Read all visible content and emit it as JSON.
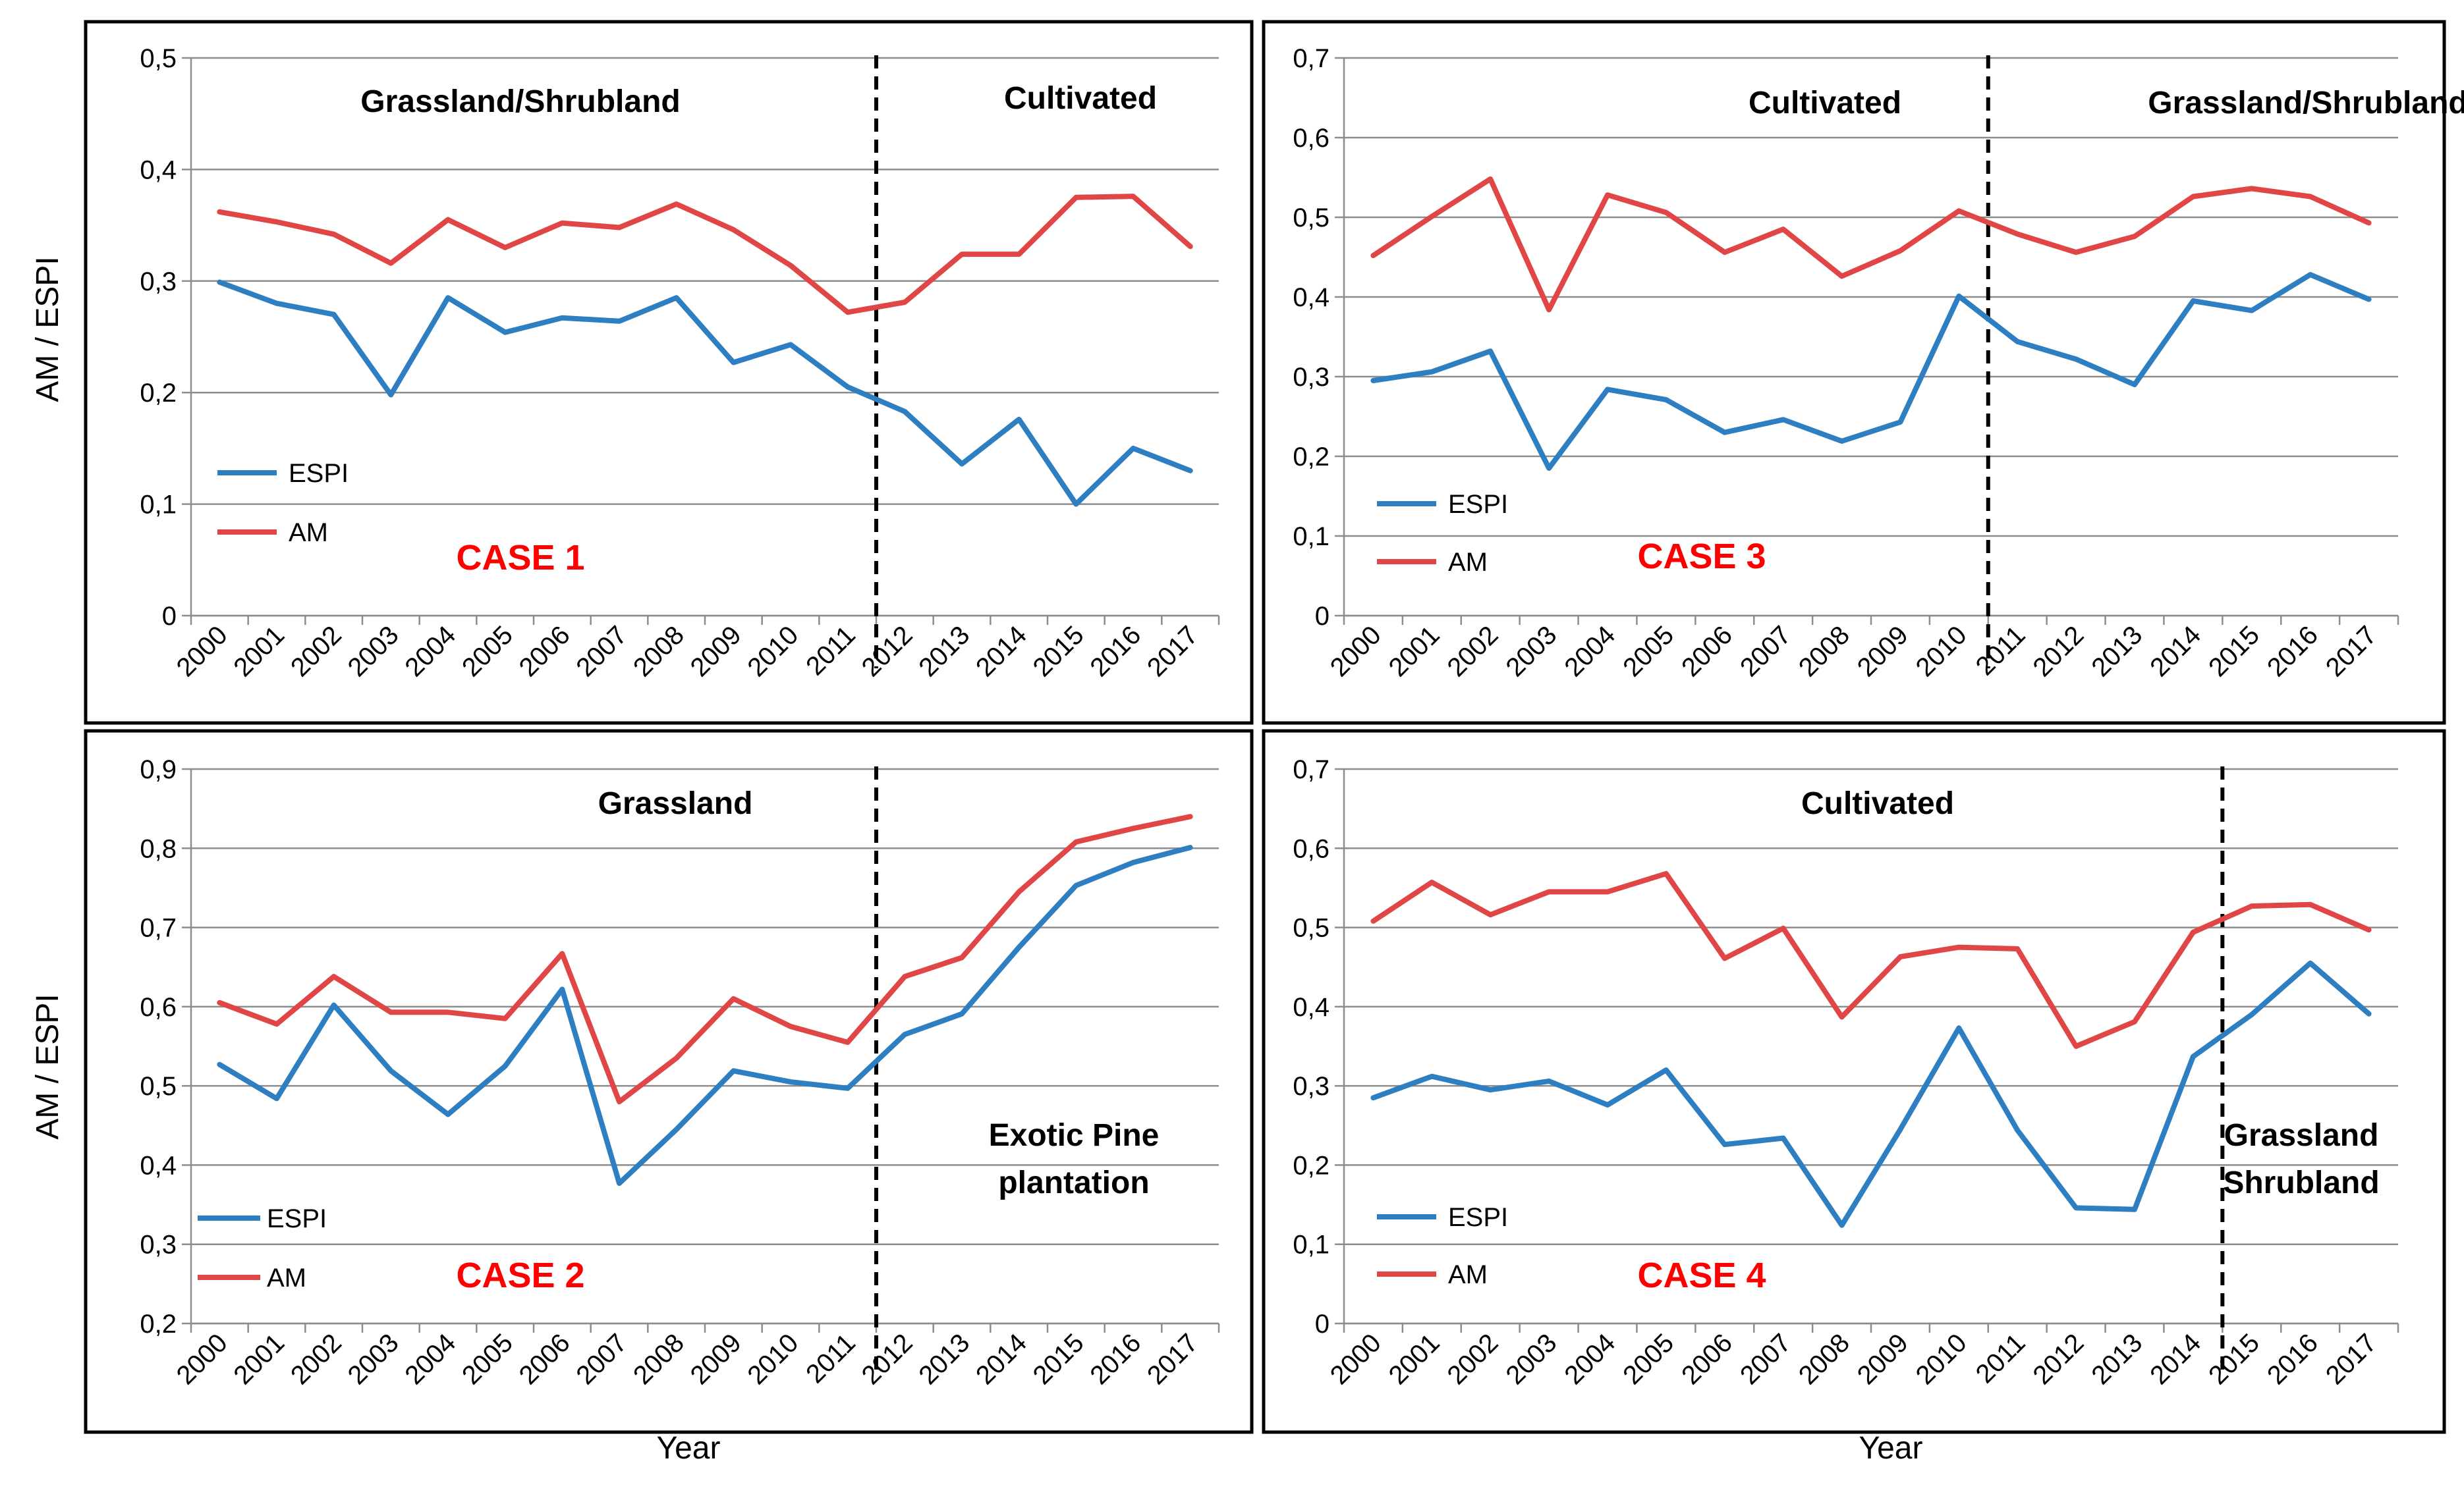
{
  "chart_data": [
    {
      "type": "line",
      "case_label": "CASE 1",
      "ylabel": "AM / ESPI",
      "xlabel": "",
      "ylim": [
        0,
        0.5
      ],
      "yticks": [
        "0",
        "0,1",
        "0,2",
        "0,3",
        "0,4",
        "0,5"
      ],
      "categories": [
        "2000",
        "2001",
        "2002",
        "2003",
        "2004",
        "2005",
        "2006",
        "2007",
        "2008",
        "2009",
        "2010",
        "2011",
        "2012",
        "2013",
        "2014",
        "2015",
        "2016",
        "2017"
      ],
      "series": [
        {
          "name": "ESPI",
          "values": [
            0.299,
            0.28,
            0.27,
            0.198,
            0.285,
            0.254,
            0.267,
            0.264,
            0.285,
            0.227,
            0.243,
            0.205,
            0.183,
            0.136,
            0.176,
            0.1,
            0.15,
            0.13
          ]
        },
        {
          "name": "AM",
          "values": [
            0.362,
            0.353,
            0.342,
            0.316,
            0.355,
            0.33,
            0.352,
            0.348,
            0.369,
            0.346,
            0.314,
            0.272,
            0.281,
            0.324,
            0.324,
            0.375,
            0.376,
            0.331
          ]
        }
      ],
      "divider_after": "2011",
      "annotations": [
        {
          "text": "Grassland/Shrubland",
          "lines": [
            "Grassland/Shrubland"
          ]
        },
        {
          "text": "Cultivated",
          "lines": [
            "Cultivated"
          ]
        }
      ],
      "legend_position": "bottom-left"
    },
    {
      "type": "line",
      "case_label": "CASE 3",
      "ylabel": "",
      "xlabel": "",
      "ylim": [
        0,
        0.7
      ],
      "yticks": [
        "0",
        "0,1",
        "0,2",
        "0,3",
        "0,4",
        "0,5",
        "0,6",
        "0,7"
      ],
      "categories": [
        "2000",
        "2001",
        "2002",
        "2003",
        "2004",
        "2005",
        "2006",
        "2007",
        "2008",
        "2009",
        "2010",
        "2011",
        "2012",
        "2013",
        "2014",
        "2015",
        "2016",
        "2017"
      ],
      "series": [
        {
          "name": "ESPI",
          "values": [
            0.295,
            0.306,
            0.332,
            0.185,
            0.284,
            0.271,
            0.23,
            0.246,
            0.219,
            0.243,
            0.401,
            0.344,
            0.322,
            0.29,
            0.395,
            0.383,
            0.428,
            0.397
          ]
        },
        {
          "name": "AM",
          "values": [
            0.452,
            0.501,
            0.548,
            0.384,
            0.528,
            0.506,
            0.456,
            0.485,
            0.426,
            0.458,
            0.508,
            0.479,
            0.456,
            0.476,
            0.526,
            0.536,
            0.526,
            0.493
          ]
        }
      ],
      "divider_after": "2010",
      "annotations": [
        {
          "text": "Cultivated",
          "lines": [
            "Cultivated"
          ]
        },
        {
          "text": "Grassland/Shrubland",
          "lines": [
            "Grassland/Shrubland"
          ]
        }
      ],
      "legend_position": "bottom-left"
    },
    {
      "type": "line",
      "case_label": "CASE 2",
      "ylabel": "AM / ESPI",
      "xlabel": "Year",
      "ylim": [
        0.2,
        0.9
      ],
      "yticks": [
        "0,2",
        "0,3",
        "0,4",
        "0,5",
        "0,6",
        "0,7",
        "0,8",
        "0,9"
      ],
      "categories": [
        "2000",
        "2001",
        "2002",
        "2003",
        "2004",
        "2005",
        "2006",
        "2007",
        "2008",
        "2009",
        "2010",
        "2011",
        "2012",
        "2013",
        "2014",
        "2015",
        "2016",
        "2017"
      ],
      "series": [
        {
          "name": "ESPI",
          "values": [
            0.527,
            0.484,
            0.602,
            0.519,
            0.464,
            0.525,
            0.622,
            0.377,
            0.445,
            0.519,
            0.505,
            0.497,
            0.565,
            0.591,
            0.675,
            0.753,
            0.782,
            0.801
          ]
        },
        {
          "name": "AM",
          "values": [
            0.605,
            0.578,
            0.638,
            0.593,
            0.593,
            0.585,
            0.667,
            0.48,
            0.535,
            0.61,
            0.575,
            0.555,
            0.638,
            0.662,
            0.745,
            0.808,
            0.825,
            0.84
          ]
        }
      ],
      "divider_after": "2011",
      "annotations": [
        {
          "text": "Grassland",
          "lines": [
            "Grassland"
          ]
        },
        {
          "text": "Exotic Pine plantation",
          "lines": [
            "Exotic Pine",
            "plantation"
          ]
        }
      ],
      "legend_position": "bottom-left"
    },
    {
      "type": "line",
      "case_label": "CASE 4",
      "ylabel": "",
      "xlabel": "Year",
      "ylim": [
        0,
        0.7
      ],
      "yticks": [
        "0",
        "0,1",
        "0,2",
        "0,3",
        "0,4",
        "0,5",
        "0,6",
        "0,7"
      ],
      "categories": [
        "2000",
        "2001",
        "2002",
        "2003",
        "2004",
        "2005",
        "2006",
        "2007",
        "2008",
        "2009",
        "2010",
        "2011",
        "2012",
        "2013",
        "2014",
        "2015",
        "2016",
        "2017"
      ],
      "series": [
        {
          "name": "ESPI",
          "values": [
            0.285,
            0.312,
            0.295,
            0.306,
            0.276,
            0.32,
            0.226,
            0.234,
            0.124,
            0.245,
            0.373,
            0.244,
            0.146,
            0.144,
            0.337,
            0.39,
            0.455,
            0.391
          ]
        },
        {
          "name": "AM",
          "values": [
            0.508,
            0.557,
            0.516,
            0.545,
            0.545,
            0.568,
            0.461,
            0.499,
            0.387,
            0.463,
            0.475,
            0.473,
            0.35,
            0.381,
            0.494,
            0.527,
            0.529,
            0.497
          ]
        }
      ],
      "divider_after": "2014",
      "annotations": [
        {
          "text": "Cultivated",
          "lines": [
            "Cultivated"
          ]
        },
        {
          "text": "Grassland Shrubland",
          "lines": [
            "Grassland",
            "Shrubland"
          ]
        }
      ],
      "legend_position": "bottom-left"
    }
  ],
  "colors": {
    "ESPI": "#2e7fc1",
    "AM": "#e04646",
    "case_label": "#ff0000"
  }
}
